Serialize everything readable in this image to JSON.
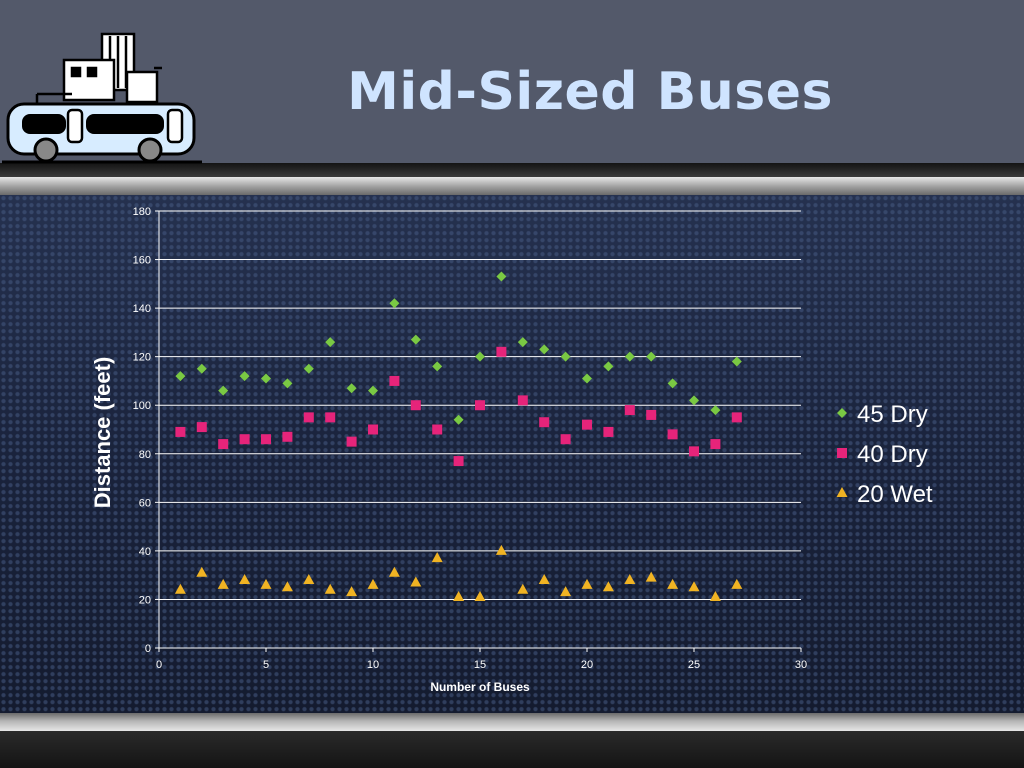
{
  "slide": {
    "title": "Mid-Sized Buses",
    "logo_icon": "bus-and-buildings-icon"
  },
  "chart_data": {
    "type": "scatter",
    "title": "",
    "xlabel": "Number of Buses",
    "ylabel": "Distance (feet)",
    "xlim": [
      0,
      30
    ],
    "ylim": [
      0,
      180
    ],
    "xticks": [
      0,
      5,
      10,
      15,
      20,
      25,
      30
    ],
    "yticks": [
      0,
      20,
      40,
      60,
      80,
      100,
      120,
      140,
      160,
      180
    ],
    "grid": "horizontal",
    "legend": "right",
    "x": [
      1,
      2,
      3,
      4,
      5,
      6,
      7,
      8,
      9,
      10,
      11,
      12,
      13,
      14,
      15,
      16,
      17,
      18,
      19,
      20,
      21,
      22,
      23,
      24,
      25,
      26,
      27
    ],
    "series": [
      {
        "name": "45 Dry",
        "marker": "diamond",
        "color": "#7ac943",
        "values": [
          112,
          115,
          106,
          112,
          111,
          109,
          115,
          126,
          107,
          106,
          142,
          127,
          116,
          94,
          120,
          153,
          126,
          123,
          120,
          111,
          116,
          120,
          120,
          109,
          102,
          98,
          118
        ]
      },
      {
        "name": "40 Dry",
        "marker": "square",
        "color": "#e6247a",
        "values": [
          89,
          91,
          84,
          86,
          86,
          87,
          95,
          95,
          85,
          90,
          110,
          100,
          90,
          77,
          100,
          122,
          102,
          93,
          86,
          92,
          89,
          98,
          96,
          88,
          81,
          84,
          95
        ]
      },
      {
        "name": "20 Wet",
        "marker": "triangle",
        "color": "#f0b323",
        "values": [
          24,
          31,
          26,
          28,
          26,
          25,
          28,
          24,
          23,
          26,
          31,
          27,
          37,
          21,
          21,
          40,
          24,
          28,
          23,
          26,
          25,
          28,
          29,
          26,
          25,
          21,
          26
        ]
      }
    ]
  }
}
